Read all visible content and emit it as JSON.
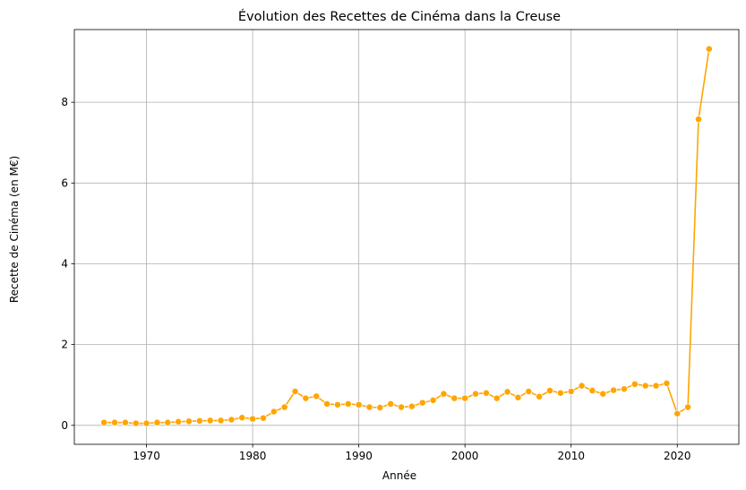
{
  "chart_data": {
    "type": "line",
    "title": "Évolution des Recettes de Cinéma dans la Creuse",
    "xlabel": "Année",
    "ylabel": "Recette de Cinéma (en M€)",
    "xlim": [
      1963.2,
      2025.8
    ],
    "ylim": [
      -0.47,
      9.8
    ],
    "xticks": [
      1970,
      1980,
      1990,
      2000,
      2010,
      2020
    ],
    "yticks": [
      0,
      2,
      4,
      6,
      8
    ],
    "grid": true,
    "legend": "none",
    "color": "#FFA500",
    "marker": "circle",
    "series": [
      {
        "x": [
          1966,
          1967,
          1968,
          1969,
          1970,
          1971,
          1972,
          1973,
          1974,
          1975,
          1976,
          1977,
          1978,
          1979,
          1980,
          1981,
          1982,
          1983,
          1984,
          1985,
          1986,
          1987,
          1988,
          1989,
          1990,
          1991,
          1992,
          1993,
          1994,
          1995,
          1996,
          1997,
          1998,
          1999,
          2000,
          2001,
          2002,
          2003,
          2004,
          2005,
          2006,
          2007,
          2008,
          2009,
          2010,
          2011,
          2012,
          2013,
          2014,
          2015,
          2016,
          2017,
          2018,
          2019,
          2020,
          2021,
          2022,
          2023
        ],
        "values": [
          0.07,
          0.07,
          0.07,
          0.05,
          0.05,
          0.07,
          0.07,
          0.09,
          0.1,
          0.11,
          0.12,
          0.12,
          0.14,
          0.19,
          0.16,
          0.18,
          0.34,
          0.45,
          0.84,
          0.67,
          0.72,
          0.53,
          0.51,
          0.53,
          0.51,
          0.45,
          0.44,
          0.53,
          0.45,
          0.47,
          0.56,
          0.62,
          0.78,
          0.67,
          0.67,
          0.78,
          0.8,
          0.67,
          0.83,
          0.69,
          0.84,
          0.71,
          0.86,
          0.8,
          0.84,
          0.98,
          0.86,
          0.78,
          0.87,
          0.9,
          1.02,
          0.98,
          0.98,
          1.04,
          0.29,
          0.45,
          7.58,
          9.32
        ]
      }
    ]
  }
}
